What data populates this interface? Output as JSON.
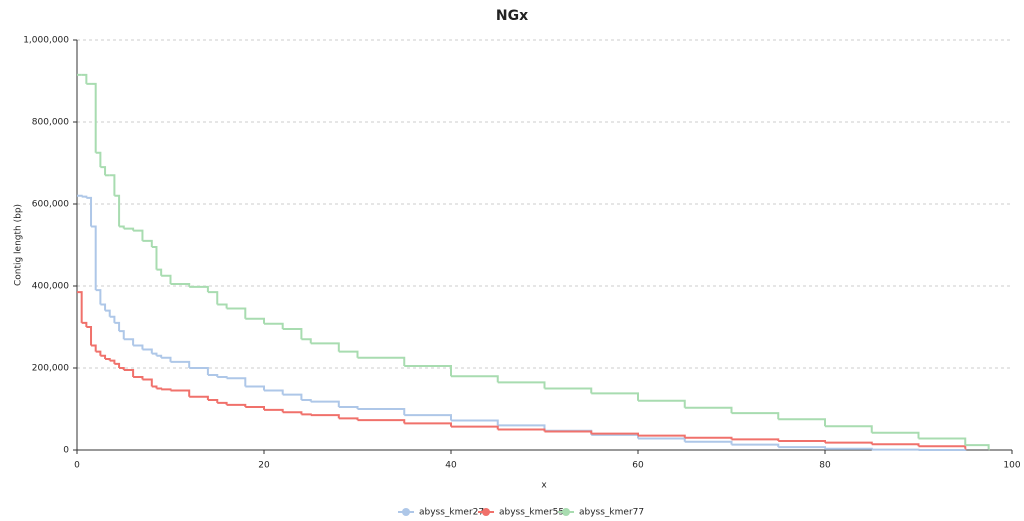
{
  "chart_data": {
    "type": "line",
    "step": true,
    "title": "NGx",
    "x_label": "x",
    "y_label": "Contig length (bp)",
    "x": [
      0,
      0.5,
      1,
      1.5,
      2,
      2.5,
      3,
      3.5,
      4,
      4.5,
      5,
      6,
      7,
      8,
      8.5,
      9,
      10,
      12,
      14,
      15,
      16,
      18,
      20,
      22,
      24,
      25,
      28,
      30,
      35,
      40,
      45,
      50,
      55,
      60,
      65,
      70,
      75,
      80,
      85,
      90,
      95,
      97.5
    ],
    "series": [
      {
        "name": "abyss_kmer27",
        "color": "#aec7e8",
        "values": [
          620000,
          618000,
          615000,
          545000,
          390000,
          355000,
          340000,
          325000,
          310000,
          290000,
          270000,
          255000,
          245000,
          235000,
          230000,
          225000,
          215000,
          200000,
          183000,
          178000,
          175000,
          155000,
          145000,
          135000,
          122000,
          118000,
          105000,
          100000,
          85000,
          72000,
          60000,
          47000,
          37000,
          28000,
          20000,
          13000,
          7000,
          3000,
          1000,
          0,
          0,
          null
        ]
      },
      {
        "name": "abyss_kmer55",
        "color": "#f0716b",
        "values": [
          385000,
          310000,
          300000,
          255000,
          240000,
          230000,
          222000,
          218000,
          210000,
          200000,
          195000,
          178000,
          172000,
          155000,
          150000,
          148000,
          145000,
          130000,
          122000,
          115000,
          110000,
          105000,
          98000,
          92000,
          87000,
          85000,
          77000,
          73000,
          65000,
          57000,
          50000,
          45000,
          40000,
          35000,
          30000,
          26000,
          22000,
          18000,
          14000,
          9000,
          3000,
          null
        ]
      },
      {
        "name": "abyss_kmer77",
        "color": "#a8dcb0",
        "values": [
          915000,
          915000,
          893000,
          893000,
          725000,
          690000,
          670000,
          670000,
          620000,
          545000,
          540000,
          535000,
          510000,
          495000,
          440000,
          425000,
          405000,
          398000,
          385000,
          355000,
          345000,
          320000,
          308000,
          295000,
          270000,
          260000,
          240000,
          225000,
          205000,
          180000,
          165000,
          150000,
          138000,
          120000,
          103000,
          90000,
          75000,
          58000,
          42000,
          28000,
          12000,
          2000
        ]
      }
    ],
    "xlim": [
      0,
      100
    ],
    "xticks": [
      0,
      20,
      40,
      60,
      80,
      100
    ],
    "ylim": [
      0,
      1000000
    ],
    "yticks": [
      0,
      {
        "value": 200000,
        "label": "200,000"
      },
      {
        "value": 400000,
        "label": "400,000"
      },
      {
        "value": 600000,
        "label": "600,000"
      },
      {
        "value": 800000,
        "label": "800,000"
      },
      {
        "value": 1000000,
        "label": "1,000,000"
      }
    ],
    "grid": true
  }
}
